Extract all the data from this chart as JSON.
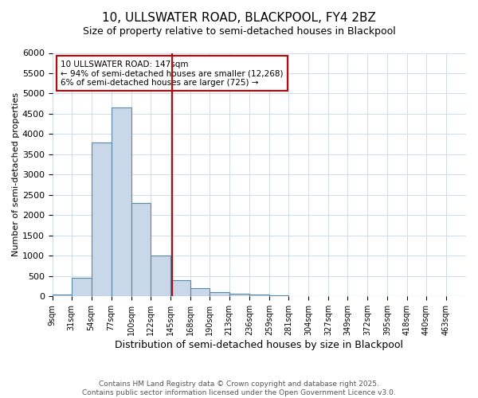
{
  "title": "10, ULLSWATER ROAD, BLACKPOOL, FY4 2BZ",
  "subtitle": "Size of property relative to semi-detached houses in Blackpool",
  "xlabel": "Distribution of semi-detached houses by size in Blackpool",
  "ylabel": "Number of semi-detached properties",
  "bin_labels": [
    "9sqm",
    "31sqm",
    "54sqm",
    "77sqm",
    "100sqm",
    "122sqm",
    "145sqm",
    "168sqm",
    "190sqm",
    "213sqm",
    "236sqm",
    "259sqm",
    "281sqm",
    "304sqm",
    "327sqm",
    "349sqm",
    "372sqm",
    "395sqm",
    "418sqm",
    "440sqm",
    "463sqm"
  ],
  "bin_edges": [
    9,
    31,
    54,
    77,
    100,
    122,
    145,
    168,
    190,
    213,
    236,
    259,
    281,
    304,
    327,
    349,
    372,
    395,
    418,
    440,
    463,
    486
  ],
  "bar_heights": [
    50,
    450,
    3800,
    4650,
    2300,
    1000,
    400,
    200,
    100,
    75,
    50,
    30,
    10,
    5,
    5,
    5,
    5,
    5,
    5,
    5,
    5
  ],
  "bar_color": "#c8d8e8",
  "bar_edge_color": "#5588aa",
  "property_size": 147,
  "vline_color": "#cc0000",
  "annotation_line1": "10 ULLSWATER ROAD: 147sqm",
  "annotation_line2": "← 94% of semi-detached houses are smaller (12,268)",
  "annotation_line3": "6% of semi-detached houses are larger (725) →",
  "annotation_box_color": "#ffffff",
  "annotation_box_edge": "#cc0000",
  "ylim": [
    0,
    6000
  ],
  "yticks": [
    0,
    500,
    1000,
    1500,
    2000,
    2500,
    3000,
    3500,
    4000,
    4500,
    5000,
    5500,
    6000
  ],
  "footnote": "Contains HM Land Registry data © Crown copyright and database right 2025.\nContains public sector information licensed under the Open Government Licence v3.0.",
  "background_color": "#ffffff",
  "grid_color": "#ccddee"
}
